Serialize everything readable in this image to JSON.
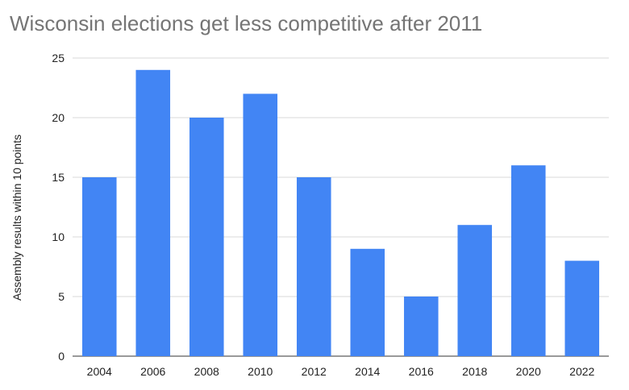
{
  "chart_data": {
    "type": "bar",
    "title": "Wisconsin elections get less competitive after 2011",
    "xlabel": "",
    "ylabel": "Assembly results within 10 points",
    "categories": [
      "2004",
      "2006",
      "2008",
      "2010",
      "2012",
      "2014",
      "2016",
      "2018",
      "2020",
      "2022"
    ],
    "values": [
      15,
      24,
      20,
      22,
      15,
      9,
      5,
      11,
      16,
      8
    ],
    "ylim": [
      0,
      25
    ],
    "yticks": [
      0,
      5,
      10,
      15,
      20,
      25
    ],
    "grid": true,
    "bar_color": "#4285f4",
    "grid_color": "#d9d9d9",
    "title_color": "#757575"
  }
}
